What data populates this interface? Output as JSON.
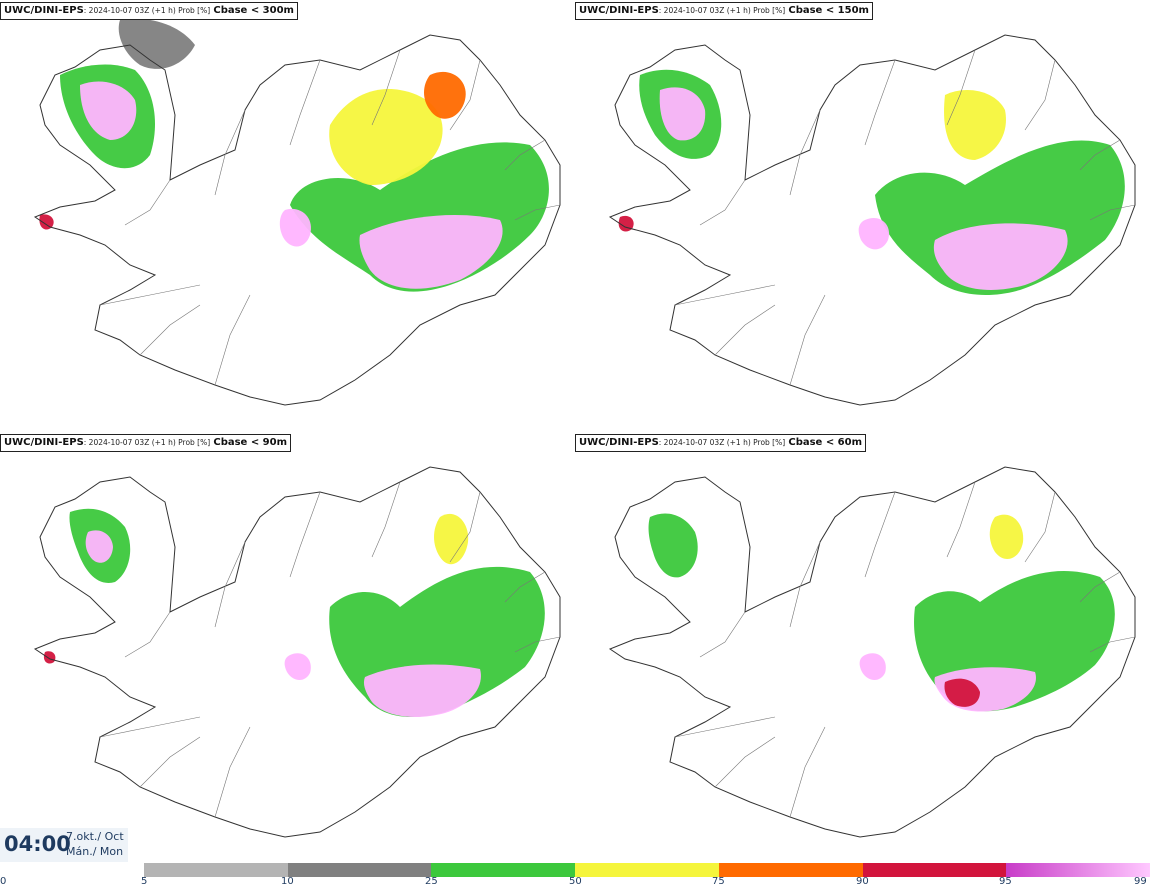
{
  "panels": [
    {
      "model": "UWC/DINI-EPS",
      "meta": ": 2024-10-07 03Z (+1 h) Prob [%]",
      "var": "Cbase < 300m"
    },
    {
      "model": "UWC/DINI-EPS",
      "meta": ": 2024-10-07 03Z (+1 h) Prob [%]",
      "var": "Cbase < 150m"
    },
    {
      "model": "UWC/DINI-EPS",
      "meta": ": 2024-10-07 03Z (+1 h) Prob [%]",
      "var": "Cbase < 90m"
    },
    {
      "model": "UWC/DINI-EPS",
      "meta": ": 2024-10-07 03Z (+1 h) Prob [%]",
      "var": "Cbase < 60m"
    }
  ],
  "time": {
    "clock": "04:00",
    "date_line": "7.okt./ Oct",
    "day_line": "Mán./ Mon"
  },
  "colorbar": {
    "ticks": [
      "0",
      "5",
      "10",
      "25",
      "50",
      "75",
      "90",
      "95",
      "99"
    ],
    "bins": [
      {
        "from": 5,
        "to": 10,
        "color": "#b4b4b4"
      },
      {
        "from": 10,
        "to": 25,
        "color": "#808080"
      },
      {
        "from": 25,
        "to": 50,
        "color": "#3cc83c"
      },
      {
        "from": 50,
        "to": 75,
        "color": "#f5f53c"
      },
      {
        "from": 75,
        "to": 90,
        "color": "#ff6a00"
      },
      {
        "from": 90,
        "to": 95,
        "color": "#d2143c"
      },
      {
        "from": 95,
        "to": 99,
        "color": "#c83cc8",
        "to_color": "#ffc8ff"
      }
    ]
  }
}
